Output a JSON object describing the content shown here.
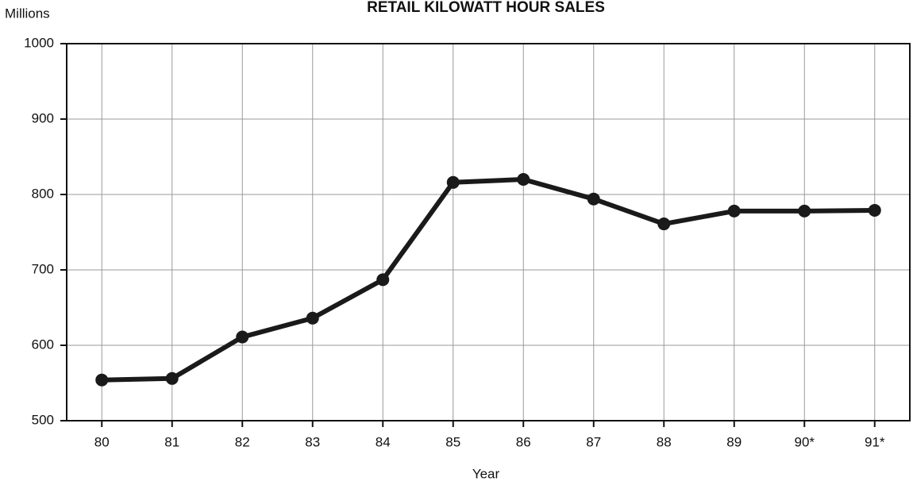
{
  "chart_data": {
    "type": "line",
    "title": "RETAIL KILOWATT HOUR SALES",
    "y_label": "Millions",
    "x_label": "Year",
    "categories": [
      "80",
      "81",
      "82",
      "83",
      "84",
      "85",
      "86",
      "87",
      "88",
      "89",
      "90*",
      "91*"
    ],
    "series": [
      {
        "name": "Retail kilowatt hour sales",
        "color": "#1a1a1a",
        "values": [
          554,
          556,
          611,
          636,
          687,
          816,
          820,
          794,
          761,
          778,
          778,
          779
        ]
      }
    ],
    "ylim": [
      500,
      1000
    ],
    "yticks": [
      500,
      600,
      700,
      800,
      900,
      1000
    ],
    "grid": true
  }
}
